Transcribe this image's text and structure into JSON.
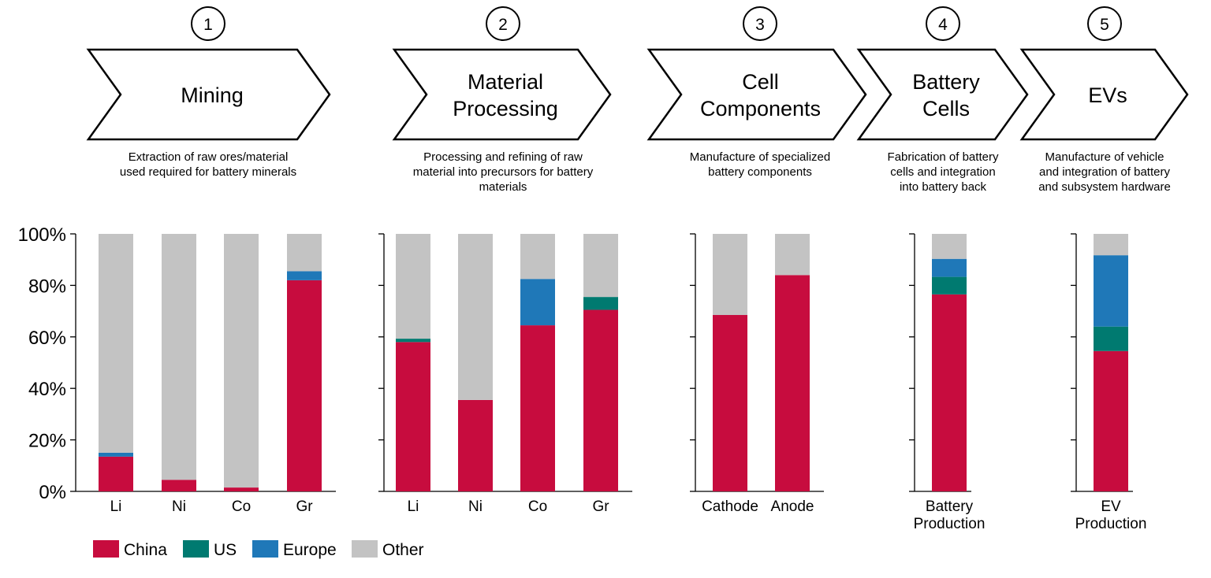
{
  "colors": {
    "China": "#c70c3e",
    "US": "#007a70",
    "Europe": "#1f78b8",
    "Other": "#c3c3c3"
  },
  "stages": [
    {
      "step": "1",
      "title_lines": [
        "Mining"
      ],
      "desc_lines": [
        "Extraction of raw ores/material",
        "used required for battery minerals"
      ]
    },
    {
      "step": "2",
      "title_lines": [
        "Material",
        "Processing"
      ],
      "desc_lines": [
        "Processing and refining of raw",
        "material into precursors for battery",
        "materials"
      ]
    },
    {
      "step": "3",
      "title_lines": [
        "Cell",
        "Components"
      ],
      "desc_lines": [
        "Manufacture of specialized",
        "battery components"
      ]
    },
    {
      "step": "4",
      "title_lines": [
        "Battery",
        "Cells"
      ],
      "desc_lines": [
        "Fabrication of battery",
        "cells and integration",
        "into battery back"
      ]
    },
    {
      "step": "5",
      "title_lines": [
        "EVs"
      ],
      "desc_lines": [
        "Manufacture of vehicle",
        "and integration of battery",
        "and subsystem hardware"
      ]
    }
  ],
  "chart_data": {
    "type": "bar",
    "stacked": true,
    "y_unit": "%",
    "ylim": [
      0,
      100
    ],
    "yticks": [
      "0%",
      "20%",
      "40%",
      "60%",
      "80%",
      "100%"
    ],
    "legend": {
      "placement": "bottom-left",
      "entries": [
        "China",
        "US",
        "Europe",
        "Other"
      ]
    },
    "panels": [
      {
        "stage": "Mining",
        "categories": [
          [
            "Li"
          ],
          [
            "Ni"
          ],
          [
            "Co"
          ],
          [
            "Gr"
          ]
        ],
        "series": [
          {
            "name": "China",
            "values": [
              13.5,
              4.5,
              1.5,
              82
            ]
          },
          {
            "name": "US",
            "values": [
              0,
              0,
              0,
              0
            ]
          },
          {
            "name": "Europe",
            "values": [
              1.5,
              0,
              0,
              3.5
            ]
          },
          {
            "name": "Other",
            "values": [
              85,
              95.5,
              98.5,
              14.5
            ]
          }
        ]
      },
      {
        "stage": "Material Processing",
        "categories": [
          [
            "Li"
          ],
          [
            "Ni"
          ],
          [
            "Co"
          ],
          [
            "Gr"
          ]
        ],
        "series": [
          {
            "name": "China",
            "values": [
              58,
              35.5,
              64.5,
              70.5
            ]
          },
          {
            "name": "US",
            "values": [
              1.3,
              0,
              0,
              5
            ]
          },
          {
            "name": "Europe",
            "values": [
              0,
              0,
              18,
              0
            ]
          },
          {
            "name": "Other",
            "values": [
              40.7,
              64.5,
              17.5,
              24.5
            ]
          }
        ]
      },
      {
        "stage": "Cell Components",
        "categories": [
          [
            "Cathode"
          ],
          [
            "Anode"
          ]
        ],
        "series": [
          {
            "name": "China",
            "values": [
              68.5,
              84
            ]
          },
          {
            "name": "US",
            "values": [
              0,
              0
            ]
          },
          {
            "name": "Europe",
            "values": [
              0,
              0
            ]
          },
          {
            "name": "Other",
            "values": [
              31.5,
              16
            ]
          }
        ]
      },
      {
        "stage": "Battery Cells",
        "categories": [
          [
            "Battery",
            "Production"
          ]
        ],
        "series": [
          {
            "name": "China",
            "values": [
              76.5
            ]
          },
          {
            "name": "US",
            "values": [
              6.8
            ]
          },
          {
            "name": "Europe",
            "values": [
              7
            ]
          },
          {
            "name": "Other",
            "values": [
              9.7
            ]
          }
        ]
      },
      {
        "stage": "EVs",
        "categories": [
          [
            "EV",
            "Production"
          ]
        ],
        "series": [
          {
            "name": "China",
            "values": [
              54.5
            ]
          },
          {
            "name": "US",
            "values": [
              9.5
            ]
          },
          {
            "name": "Europe",
            "values": [
              27.7
            ]
          },
          {
            "name": "Other",
            "values": [
              8.3
            ]
          }
        ]
      }
    ]
  }
}
